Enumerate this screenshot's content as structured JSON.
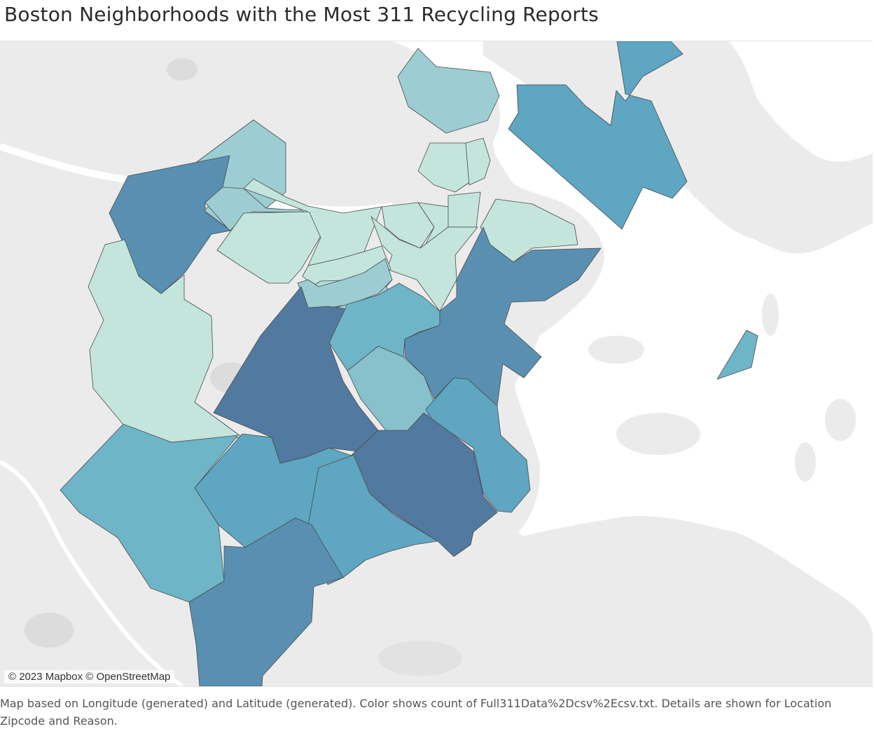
{
  "title": "Boston Neighborhoods with the Most 311 Recycling Reports",
  "attribution": "© 2023 Mapbox © OpenStreetMap",
  "caption": "Map based on Longitude (generated) and Latitude (generated).  Color shows count of Full311Data%2Dcsv%2Ecsv.txt.  Details are shown for Location Zipcode and Reason.",
  "colors": {
    "water": "#ffffff",
    "land": "#ebebeb",
    "land_dark": "#e0e0e0",
    "scale": [
      "#c4e5dc",
      "#b2dcd6",
      "#9ccdd2",
      "#86c1cc",
      "#6fb5c8",
      "#5ea6c1",
      "#5990b1",
      "#527aa0"
    ]
  }
}
